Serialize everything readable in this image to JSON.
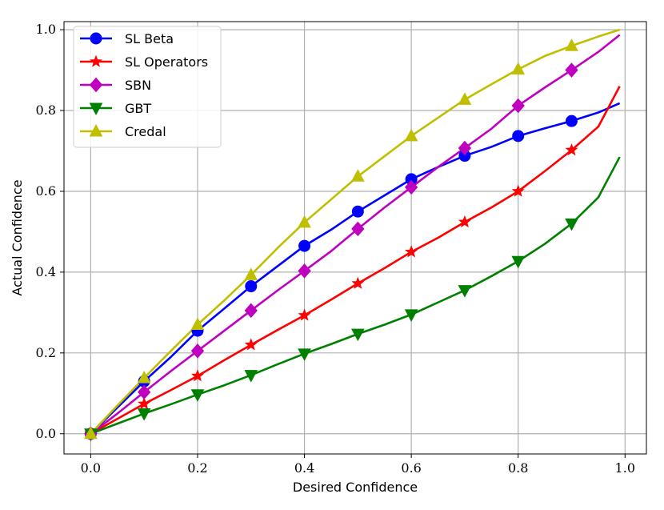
{
  "chart_data": {
    "type": "line",
    "title": "",
    "xlabel": "Desired Confidence",
    "ylabel": "Actual Confidence",
    "xlim": [
      -0.05,
      1.04
    ],
    "ylim": [
      -0.05,
      1.02
    ],
    "x_ticks": [
      "0.0",
      "0.2",
      "0.4",
      "0.6",
      "0.8",
      "1.0"
    ],
    "y_ticks": [
      "0.0",
      "0.2",
      "0.4",
      "0.6",
      "0.8",
      "1.0"
    ],
    "grid": true,
    "legend_position": "top-left",
    "series": [
      {
        "name": "SL Beta",
        "color": "#0000ff",
        "marker": "circle",
        "line_x": [
          0,
          0.05,
          0.1,
          0.15,
          0.2,
          0.25,
          0.3,
          0.35,
          0.4,
          0.45,
          0.5,
          0.55,
          0.6,
          0.65,
          0.7,
          0.75,
          0.8,
          0.85,
          0.9,
          0.95,
          0.99
        ],
        "line_y": [
          0,
          0.065,
          0.13,
          0.19,
          0.255,
          0.31,
          0.365,
          0.415,
          0.465,
          0.505,
          0.55,
          0.59,
          0.63,
          0.66,
          0.688,
          0.71,
          0.737,
          0.756,
          0.774,
          0.795,
          0.818
        ],
        "marker_x": [
          0,
          0.1,
          0.2,
          0.3,
          0.4,
          0.5,
          0.6,
          0.7,
          0.8,
          0.9
        ],
        "marker_y": [
          0,
          0.13,
          0.255,
          0.365,
          0.465,
          0.55,
          0.63,
          0.688,
          0.737,
          0.774
        ]
      },
      {
        "name": "SL Operators",
        "color": "#ff0000",
        "marker": "star",
        "line_x": [
          0,
          0.05,
          0.1,
          0.15,
          0.2,
          0.25,
          0.3,
          0.35,
          0.4,
          0.45,
          0.5,
          0.55,
          0.6,
          0.65,
          0.7,
          0.75,
          0.8,
          0.85,
          0.9,
          0.95,
          0.99
        ],
        "line_y": [
          0,
          0.037,
          0.074,
          0.108,
          0.143,
          0.182,
          0.22,
          0.257,
          0.293,
          0.332,
          0.372,
          0.41,
          0.45,
          0.485,
          0.524,
          0.56,
          0.6,
          0.65,
          0.702,
          0.76,
          0.86
        ],
        "marker_x": [
          0,
          0.1,
          0.2,
          0.3,
          0.4,
          0.5,
          0.6,
          0.7,
          0.8,
          0.9
        ],
        "marker_y": [
          0,
          0.074,
          0.143,
          0.22,
          0.293,
          0.372,
          0.45,
          0.524,
          0.6,
          0.702
        ]
      },
      {
        "name": "SBN",
        "color": "#bf00bf",
        "marker": "diamond",
        "line_x": [
          0,
          0.05,
          0.1,
          0.15,
          0.2,
          0.25,
          0.3,
          0.35,
          0.4,
          0.45,
          0.5,
          0.55,
          0.6,
          0.65,
          0.7,
          0.75,
          0.8,
          0.85,
          0.9,
          0.95,
          0.99
        ],
        "line_y": [
          0,
          0.05,
          0.103,
          0.155,
          0.205,
          0.255,
          0.305,
          0.355,
          0.403,
          0.452,
          0.507,
          0.56,
          0.61,
          0.66,
          0.707,
          0.755,
          0.812,
          0.857,
          0.9,
          0.945,
          0.987
        ],
        "marker_x": [
          0,
          0.1,
          0.2,
          0.3,
          0.4,
          0.5,
          0.6,
          0.7,
          0.8,
          0.9
        ],
        "marker_y": [
          0,
          0.103,
          0.205,
          0.305,
          0.403,
          0.507,
          0.61,
          0.707,
          0.812,
          0.9
        ]
      },
      {
        "name": "GBT",
        "color": "#008000",
        "marker": "triangle-down",
        "line_x": [
          0,
          0.05,
          0.1,
          0.15,
          0.2,
          0.25,
          0.3,
          0.35,
          0.4,
          0.45,
          0.5,
          0.55,
          0.6,
          0.65,
          0.7,
          0.75,
          0.8,
          0.85,
          0.9,
          0.95,
          0.99
        ],
        "line_y": [
          0,
          0.025,
          0.05,
          0.073,
          0.097,
          0.12,
          0.145,
          0.172,
          0.198,
          0.222,
          0.247,
          0.27,
          0.295,
          0.325,
          0.355,
          0.39,
          0.427,
          0.47,
          0.52,
          0.585,
          0.685
        ],
        "marker_x": [
          0,
          0.1,
          0.2,
          0.3,
          0.4,
          0.5,
          0.6,
          0.7,
          0.8,
          0.9
        ],
        "marker_y": [
          0,
          0.05,
          0.097,
          0.145,
          0.198,
          0.247,
          0.295,
          0.355,
          0.427,
          0.52
        ]
      },
      {
        "name": "Credal",
        "color": "#bfbf00",
        "marker": "triangle-up",
        "line_x": [
          0,
          0.05,
          0.1,
          0.15,
          0.2,
          0.25,
          0.3,
          0.35,
          0.4,
          0.45,
          0.5,
          0.55,
          0.6,
          0.65,
          0.7,
          0.75,
          0.8,
          0.85,
          0.9,
          0.95,
          0.99
        ],
        "line_y": [
          0,
          0.07,
          0.138,
          0.205,
          0.27,
          0.33,
          0.393,
          0.46,
          0.523,
          0.58,
          0.637,
          0.687,
          0.737,
          0.782,
          0.827,
          0.865,
          0.902,
          0.935,
          0.96,
          0.983,
          1.0
        ],
        "marker_x": [
          0,
          0.1,
          0.2,
          0.3,
          0.4,
          0.5,
          0.6,
          0.7,
          0.8,
          0.9
        ],
        "marker_y": [
          0,
          0.138,
          0.27,
          0.393,
          0.523,
          0.637,
          0.737,
          0.827,
          0.902,
          0.96
        ]
      }
    ]
  }
}
